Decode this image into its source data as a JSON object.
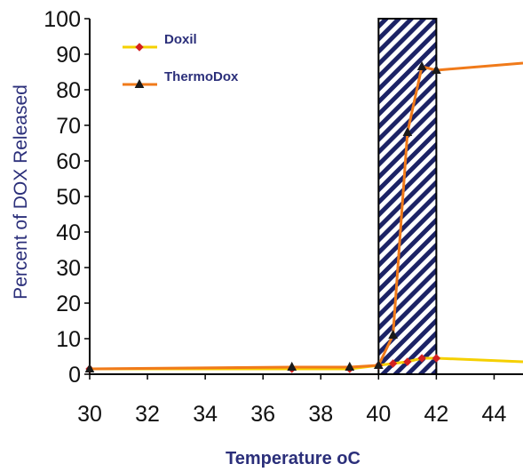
{
  "chart_data": {
    "type": "line",
    "xlabel": "Temperature ",
    "xlabel_unit": "oC",
    "ylabel": "Percent of DOX Released",
    "xlim": [
      30,
      45
    ],
    "ylim": [
      0,
      100
    ],
    "x_ticks": [
      30,
      32,
      34,
      36,
      38,
      40,
      42,
      44
    ],
    "y_ticks": [
      0,
      10,
      20,
      30,
      40,
      50,
      60,
      70,
      80,
      90,
      100
    ],
    "grid": false,
    "legend_position": "top-left",
    "shaded_band": {
      "x_start": 40,
      "x_end": 42,
      "pattern": "diagonal-hatch"
    },
    "series": [
      {
        "name": "Doxil",
        "color": "#f5d000",
        "marker_color": "#d42020",
        "marker": "diamond",
        "x": [
          30,
          37,
          39,
          40,
          40.5,
          41,
          41.5,
          42,
          45
        ],
        "y": [
          1.5,
          1.5,
          1.5,
          2.5,
          3,
          3.5,
          4.5,
          4.5,
          3.5
        ]
      },
      {
        "name": "ThermoDox",
        "color": "#f07a1a",
        "marker_color": "#1a1a1a",
        "marker": "triangle",
        "x": [
          30,
          37,
          39,
          40,
          40.5,
          41,
          41.5,
          42,
          45
        ],
        "y": [
          1.5,
          2,
          2,
          2.5,
          11,
          68,
          86.5,
          85.5,
          87.5
        ]
      }
    ]
  }
}
